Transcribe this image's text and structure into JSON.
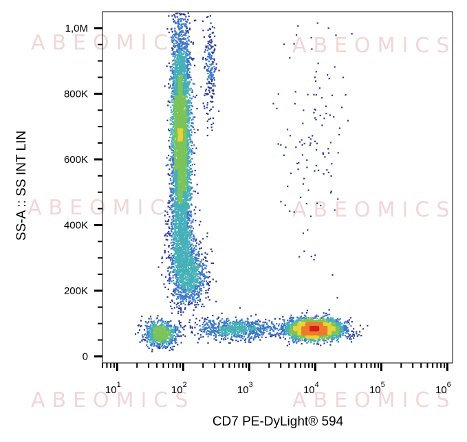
{
  "watermark": "ABEOMICS",
  "chart_data": {
    "type": "scatter",
    "style": "density-colored flow cytometry dot plot",
    "xlabel": "CD7  PE-DyLight® 594",
    "ylabel": "SS-A :: SS INT LIN",
    "x_scale": "log",
    "xlim": [
      6,
      1200000
    ],
    "ylim": [
      -20000,
      1050000
    ],
    "y_ticks": [
      {
        "value": 0,
        "label": "0"
      },
      {
        "value": 200000,
        "label": "200K"
      },
      {
        "value": 400000,
        "label": "400K"
      },
      {
        "value": 600000,
        "label": "600K"
      },
      {
        "value": 800000,
        "label": "800K"
      },
      {
        "value": 1000000,
        "label": "1,0M"
      }
    ],
    "x_ticks": [
      {
        "value": 10,
        "base": "10",
        "exp": "1"
      },
      {
        "value": 100,
        "base": "10",
        "exp": "2"
      },
      {
        "value": 1000,
        "base": "10",
        "exp": "3"
      },
      {
        "value": 10000,
        "base": "10",
        "exp": "4"
      },
      {
        "value": 100000,
        "base": "10",
        "exp": "5"
      },
      {
        "value": 1000000,
        "base": "10",
        "exp": "6"
      }
    ],
    "density_colors": [
      "#2a3a9a",
      "#3a78c8",
      "#46b0b8",
      "#7cc35a",
      "#e8d23a",
      "#f07a2a",
      "#d02020"
    ],
    "populations": [
      {
        "name": "",
        "x_center": 90,
        "y_center": 680000,
        "x_spread_log": 0.07,
        "y_spread": 170000,
        "points": 5200
      },
      {
        "name": "",
        "x_center": 95,
        "y_center": 360000,
        "x_spread_log": 0.1,
        "y_spread": 90000,
        "points": 900
      },
      {
        "name": "",
        "x_center": 120,
        "y_center": 250000,
        "x_spread_log": 0.14,
        "y_spread": 45000,
        "points": 900
      },
      {
        "name": "",
        "x_center": 45,
        "y_center": 70000,
        "x_spread_log": 0.12,
        "y_spread": 18000,
        "points": 900
      },
      {
        "name": "",
        "x_center": 9500,
        "y_center": 85000,
        "x_spread_log": 0.22,
        "y_spread": 15000,
        "points": 3200
      },
      {
        "name": "",
        "x_center": 600,
        "y_center": 85000,
        "x_spread_log": 0.3,
        "y_spread": 15000,
        "points": 800
      },
      {
        "name": "",
        "x_center": 250,
        "y_center": 880000,
        "x_spread_log": 0.05,
        "y_spread": 80000,
        "points": 200
      },
      {
        "name": "",
        "x_center": 9000,
        "y_center": 650000,
        "x_spread_log": 0.25,
        "y_spread": 200000,
        "points": 120
      }
    ]
  }
}
